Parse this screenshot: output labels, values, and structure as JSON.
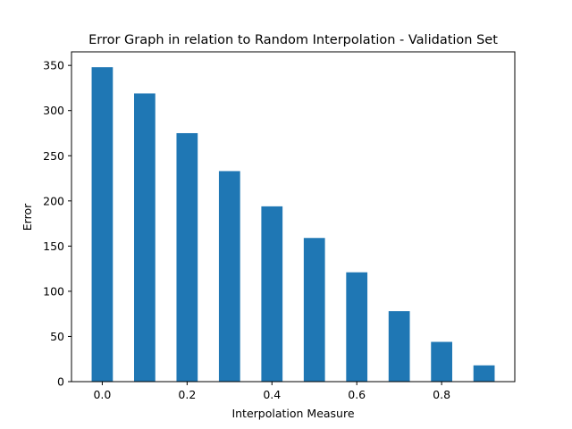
{
  "chart_data": {
    "type": "bar",
    "title": "Error Graph in relation to Random Interpolation - Validation Set",
    "xlabel": "Interpolation Measure",
    "ylabel": "Error",
    "x": [
      0.0,
      0.1,
      0.2,
      0.3,
      0.4,
      0.5,
      0.6,
      0.7,
      0.8,
      0.9
    ],
    "values": [
      348,
      319,
      275,
      233,
      194,
      159,
      121,
      78,
      44,
      18
    ],
    "bar_width": 0.05,
    "bar_color": "#1f77b4",
    "xlim": [
      -0.0725,
      0.9725
    ],
    "ylim": [
      0,
      365
    ],
    "xticks": [
      0.0,
      0.2,
      0.4,
      0.6,
      0.8
    ],
    "xtick_labels": [
      "0.0",
      "0.2",
      "0.4",
      "0.6",
      "0.8"
    ],
    "yticks": [
      0,
      50,
      100,
      150,
      200,
      250,
      300,
      350
    ],
    "ytick_labels": [
      "0",
      "50",
      "100",
      "150",
      "200",
      "250",
      "300",
      "350"
    ],
    "grid": false,
    "legend": false
  }
}
